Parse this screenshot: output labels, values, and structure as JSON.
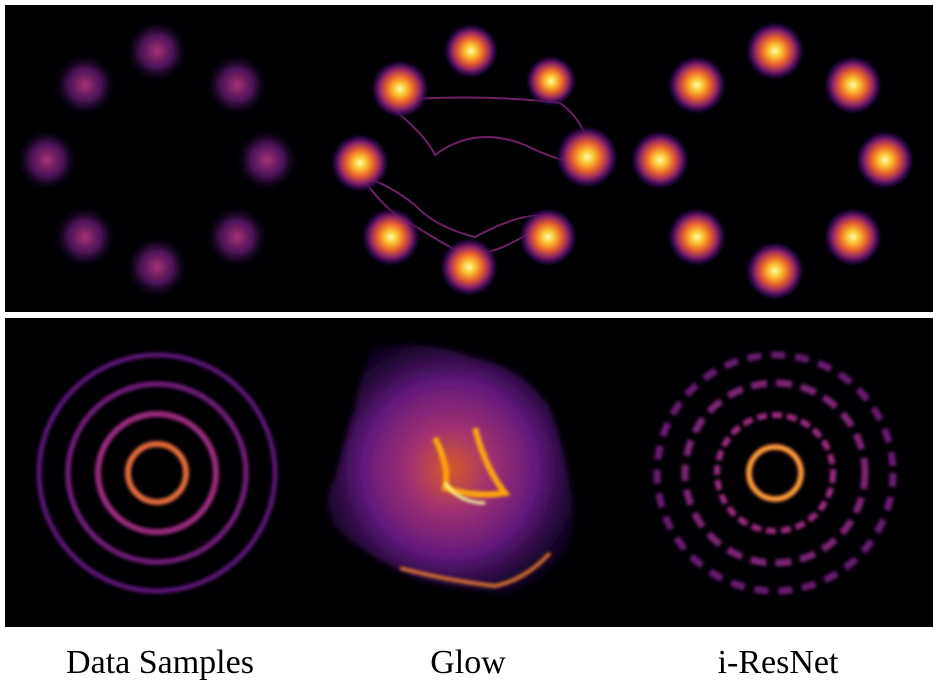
{
  "figure": {
    "columns": [
      {
        "label": "Data Samples"
      },
      {
        "label": "Glow"
      },
      {
        "label": "i-ResNet"
      }
    ],
    "rows": [
      {
        "content": "density-plots-8-gaussians"
      },
      {
        "content": "density-plots-concentric-rings"
      }
    ],
    "colormap": [
      "#000004",
      "#420a68",
      "#932667",
      "#dd513a",
      "#fca50a",
      "#fcffa4"
    ]
  }
}
